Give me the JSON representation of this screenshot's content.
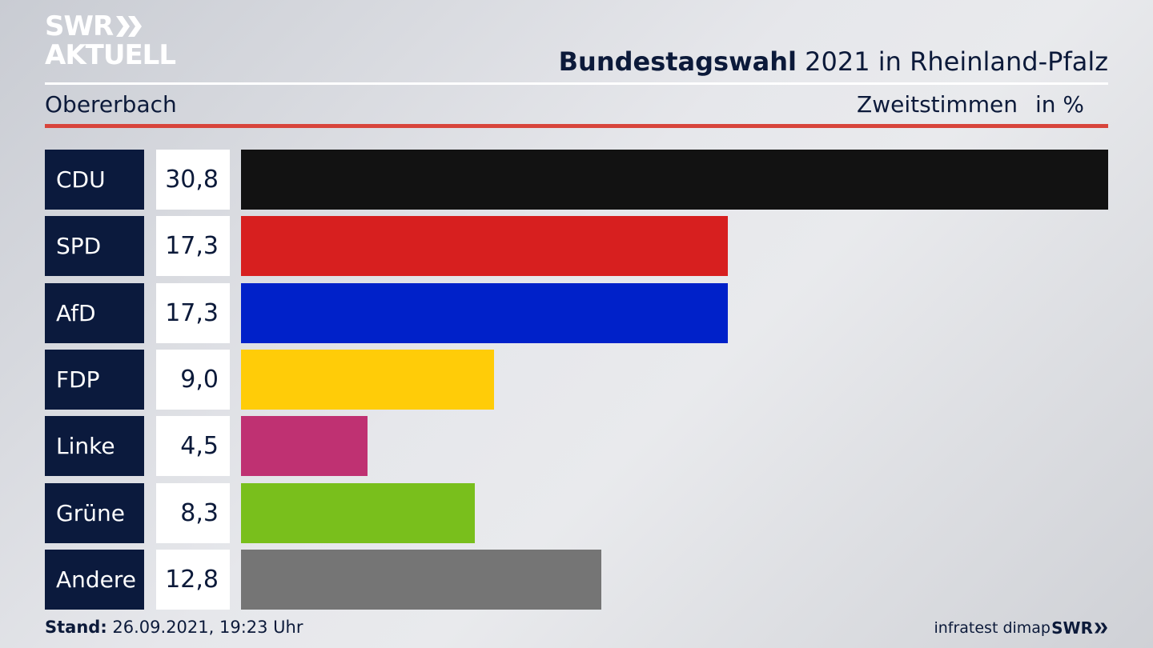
{
  "logo": {
    "line1": "SWR",
    "line2": "AKTUELL"
  },
  "header": {
    "title_bold": "Bundestagswahl",
    "title_rest": " 2021 in Rheinland-Pfalz",
    "region": "Obererbach",
    "measure": "Zweitstimmen",
    "unit": "in %"
  },
  "chart_data": {
    "type": "bar",
    "orientation": "horizontal",
    "categories": [
      "CDU",
      "SPD",
      "AfD",
      "FDP",
      "Linke",
      "Grüne",
      "Andere"
    ],
    "values": [
      30.8,
      17.3,
      17.3,
      9.0,
      4.5,
      8.3,
      12.8
    ],
    "value_labels": [
      "30,8",
      "17,3",
      "17,3",
      "9,0",
      "4,5",
      "8,3",
      "12,8"
    ],
    "colors": [
      "#121212",
      "#d71f1f",
      "#0021c9",
      "#ffcc08",
      "#bf3172",
      "#79bf1c",
      "#757575"
    ],
    "xlim": [
      0,
      30.8
    ]
  },
  "footer": {
    "stand_label": "Stand:",
    "stand_value": " 26.09.2021, 19:23 Uhr",
    "source": "infratest dimap",
    "brand": "SWR"
  }
}
